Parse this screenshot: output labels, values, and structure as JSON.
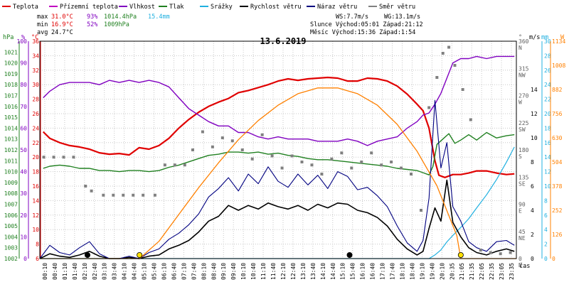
{
  "title": "13.6.2019",
  "legend": [
    {
      "label": "Teplota",
      "color": "#e00000"
    },
    {
      "label": "Přízemní teplota",
      "color": "#c000c0"
    },
    {
      "label": "Vlhkost",
      "color": "#8000c0"
    },
    {
      "label": "Tlak",
      "color": "#208020"
    },
    {
      "label": "Srážky",
      "color": "#20b0e0"
    },
    {
      "label": "Rychlost větru",
      "color": "#000000"
    },
    {
      "label": "Náraz větru",
      "color": "#000080"
    },
    {
      "label": "Směr větru",
      "color": "#808080"
    }
  ],
  "stats": {
    "max_label": "max",
    "max_temp": "31.0°C",
    "max_hum": "93%",
    "max_press": "1014.4hPa",
    "max_rain": "15.4mm",
    "min_label": "min",
    "min_temp": "16.9°C",
    "min_hum": "52%",
    "min_press": "1009hPa",
    "avg_label": "avg",
    "avg_temp": "24.7°C",
    "ws": "WS:7.7m/s",
    "wg": "WG:13.1m/s",
    "sun": "Slunce Východ:05:01  Západ:21:12",
    "moon": "Měsíc  Východ:15:36  Západ:1:54"
  },
  "axis_units": {
    "hpa": "hPa",
    "pct": "%",
    "degc": "°C",
    "deg": "°",
    "ms": "m/s",
    "mm": "mm",
    "sun": "W",
    "time": "čas"
  },
  "colors": {
    "temp": "#e00000",
    "hum": "#8000c0",
    "press": "#208020",
    "rain": "#20b0e0",
    "wind": "#000000",
    "gust": "#000080",
    "dir": "#808080",
    "sun": "#ff8000",
    "grid": "#c8c8c8"
  },
  "chart_data": {
    "type": "line",
    "x_unit": "hours",
    "x_range": [
      0,
      24
    ],
    "x_ticks": [
      "00:10",
      "00:40",
      "01:10",
      "01:40",
      "02:10",
      "02:40",
      "03:10",
      "03:40",
      "04:10",
      "04:40",
      "05:10",
      "05:40",
      "06:10",
      "06:40",
      "07:10",
      "07:40",
      "08:10",
      "08:40",
      "09:10",
      "09:40",
      "10:10",
      "10:40",
      "11:10",
      "11:40",
      "12:10",
      "12:40",
      "13:10",
      "13:40",
      "14:10",
      "14:40",
      "15:10",
      "15:40",
      "16:10",
      "16:40",
      "17:10",
      "17:40",
      "18:10",
      "18:40",
      "19:10",
      "19:40",
      "20:10",
      "20:35",
      "21:05",
      "21:35",
      "22:05",
      "22:35",
      "23:05",
      "23:35"
    ],
    "axes": {
      "hpa": {
        "ticks": [
          "1002",
          "1003",
          "1004",
          "1005",
          "1006",
          "1007",
          "1008",
          "1009",
          "1010",
          "1011",
          "1012",
          "1013",
          "1014",
          "1015",
          "1016",
          "1017",
          "1018",
          "1019",
          "1020",
          "1021"
        ],
        "range": [
          1002,
          1022
        ]
      },
      "pct": {
        "ticks": [
          "0",
          "10",
          "20",
          "30",
          "40",
          "50",
          "60",
          "70",
          "80",
          "90",
          "100"
        ],
        "range": [
          0,
          100
        ]
      },
      "degc": {
        "ticks": [
          "6",
          "8",
          "10",
          "12",
          "14",
          "16",
          "18",
          "20",
          "22",
          "24",
          "26",
          "28",
          "30",
          "32",
          "34",
          "36"
        ],
        "range": [
          6,
          36
        ]
      },
      "deg": {
        "ticks": [
          "0",
          "45",
          "90",
          "135",
          "180",
          "225",
          "270",
          "315",
          "360"
        ],
        "range": [
          0,
          360
        ]
      },
      "dir_labels": [
        "N",
        "NE",
        "E",
        "SE",
        "S",
        "SW",
        "W",
        "NW",
        "N"
      ],
      "ms": {
        "ticks": [
          "0",
          "2",
          "4",
          "6",
          "8",
          "10",
          "12",
          "14"
        ],
        "range": [
          0,
          18
        ]
      },
      "mm": {
        "ticks": [
          "0",
          "2",
          "4",
          "6",
          "8",
          "10",
          "12",
          "14",
          "16",
          "18",
          "20",
          "22",
          "24",
          "26",
          "28",
          "30"
        ],
        "range": [
          0,
          30
        ]
      },
      "sun": {
        "ticks": [
          "0",
          "126",
          "252",
          "378",
          "504",
          "630",
          "756",
          "882",
          "1008",
          "1134"
        ],
        "range": [
          0,
          1134
        ]
      }
    },
    "series": [
      {
        "name": "Teplota",
        "axis": "degc",
        "x": [
          0.17,
          0.5,
          1,
          1.5,
          2,
          2.5,
          3,
          3.5,
          4,
          4.5,
          5,
          5.5,
          6,
          6.5,
          7,
          7.5,
          8,
          8.5,
          9,
          9.5,
          10,
          10.5,
          11,
          11.5,
          12,
          12.5,
          13,
          13.5,
          14,
          14.5,
          15,
          15.5,
          16,
          16.5,
          17,
          17.5,
          18,
          18.5,
          19,
          19.3,
          19.6,
          19.9,
          20.1,
          20.4,
          20.8,
          21.2,
          21.6,
          22,
          22.5,
          23,
          23.5,
          23.9
        ],
        "y": [
          23.5,
          22.6,
          22,
          21.6,
          21.4,
          21.1,
          20.6,
          20.4,
          20.5,
          20.3,
          21.3,
          21.1,
          21.6,
          22.6,
          24,
          25.2,
          26.2,
          27,
          27.6,
          28.1,
          28.9,
          29.2,
          29.6,
          30,
          30.5,
          30.8,
          30.6,
          30.8,
          30.9,
          31,
          30.9,
          30.5,
          30.5,
          30.9,
          30.8,
          30.5,
          29.8,
          28.7,
          27.3,
          26.4,
          24,
          19.5,
          17.5,
          17.2,
          17.6,
          17.6,
          17.8,
          18.1,
          18.1,
          17.8,
          17.6,
          17.7
        ]
      },
      {
        "name": "Vlhkost",
        "axis": "pct",
        "x": [
          0.17,
          0.5,
          1,
          1.5,
          2,
          2.5,
          3,
          3.5,
          4,
          4.5,
          5,
          5.5,
          6,
          6.5,
          7,
          7.5,
          8,
          8.5,
          9,
          9.5,
          10,
          10.5,
          11,
          11.5,
          12,
          12.5,
          13,
          13.5,
          14,
          14.5,
          15,
          15.5,
          16,
          16.5,
          17,
          17.5,
          18,
          18.5,
          19,
          19.3,
          19.6,
          19.9,
          20.2,
          20.5,
          20.8,
          21.2,
          21.6,
          22,
          22.5,
          23,
          23.5,
          23.9
        ],
        "y": [
          74,
          77,
          80,
          81,
          81,
          81,
          80,
          82,
          81,
          82,
          81,
          82,
          81,
          79,
          74,
          69,
          66,
          63,
          61,
          61,
          58,
          58,
          56,
          55,
          56,
          55,
          55,
          55,
          54,
          54,
          54,
          55,
          54,
          52,
          54,
          55,
          56,
          60,
          63,
          66,
          67,
          71,
          76,
          83,
          90,
          92,
          92,
          93,
          92,
          93,
          93,
          93
        ]
      },
      {
        "name": "Tlak",
        "axis": "hpa",
        "x": [
          0.17,
          0.5,
          1,
          1.5,
          2,
          2.5,
          3,
          3.5,
          4,
          4.5,
          5,
          5.5,
          6,
          6.5,
          7,
          7.5,
          8,
          8.5,
          9,
          9.5,
          10,
          10.5,
          11,
          11.5,
          12,
          12.5,
          13,
          13.5,
          14,
          14.5,
          15,
          15.5,
          16,
          16.5,
          17,
          17.5,
          18,
          18.5,
          19,
          19.3,
          19.6,
          19.8,
          20,
          20.3,
          20.6,
          20.9,
          21.2,
          21.6,
          22,
          22.5,
          23,
          23.5,
          23.9
        ],
        "y": [
          1010.3,
          1010.5,
          1010.6,
          1010.5,
          1010.3,
          1010.3,
          1010.1,
          1010.1,
          1010.0,
          1010.1,
          1010.1,
          1010.0,
          1010.1,
          1010.4,
          1010.6,
          1010.9,
          1011.2,
          1011.5,
          1011.6,
          1011.8,
          1011.8,
          1011.7,
          1011.8,
          1011.6,
          1011.7,
          1011.5,
          1011.4,
          1011.2,
          1011.1,
          1011.1,
          1011.0,
          1010.9,
          1010.8,
          1010.7,
          1010.6,
          1010.5,
          1010.3,
          1010.2,
          1010.1,
          1009.9,
          1009.7,
          1010.5,
          1012.5,
          1013.0,
          1013.5,
          1012.6,
          1012.9,
          1013.4,
          1012.9,
          1013.6,
          1013.1,
          1013.3,
          1013.4
        ]
      },
      {
        "name": "Srážky",
        "axis": "mm",
        "x": [
          0,
          19.6,
          19.9,
          20.2,
          20.5,
          20.8,
          21.2,
          21.6,
          22,
          22.5,
          23,
          23.5,
          23.9
        ],
        "y": [
          0,
          0,
          0.5,
          1.2,
          2.3,
          3.2,
          4.3,
          5.5,
          7.0,
          8.8,
          10.9,
          13.3,
          15.4
        ]
      },
      {
        "name": "Rychlost větru",
        "axis": "ms",
        "x": [
          0,
          0.5,
          1,
          1.5,
          2,
          2.5,
          3,
          3.5,
          4,
          4.5,
          5,
          5.5,
          6,
          6.5,
          7,
          7.5,
          8,
          8.5,
          9,
          9.5,
          10,
          10.5,
          11,
          11.5,
          12,
          12.5,
          13,
          13.5,
          14,
          14.5,
          15,
          15.5,
          16,
          16.5,
          17,
          17.5,
          18,
          18.5,
          19,
          19.3,
          19.6,
          19.9,
          20.2,
          20.5,
          20.8,
          21.2,
          21.6,
          22,
          22.5,
          23,
          23.5,
          23.9
        ],
        "y": [
          0,
          0.4,
          0.2,
          0.1,
          0.3,
          0.6,
          0.2,
          0,
          0,
          0.1,
          0,
          0.2,
          0.3,
          0.8,
          1.1,
          1.5,
          2.2,
          3.1,
          3.5,
          4.4,
          4.0,
          4.4,
          4.1,
          4.6,
          4.3,
          4.1,
          4.4,
          4.0,
          4.5,
          4.2,
          4.6,
          4.5,
          4.0,
          3.8,
          3.4,
          2.7,
          1.6,
          0.8,
          0.3,
          0.6,
          2.5,
          4.2,
          3.1,
          6.5,
          3.0,
          1.8,
          0.9,
          0.5,
          0.3,
          0.6,
          0.8,
          0.6
        ]
      },
      {
        "name": "Náraz větru",
        "axis": "ms",
        "x": [
          0,
          0.5,
          1,
          1.5,
          2,
          2.5,
          3,
          3.5,
          4,
          4.5,
          5,
          5.5,
          6,
          6.5,
          7,
          7.5,
          8,
          8.5,
          9,
          9.5,
          10,
          10.5,
          11,
          11.5,
          12,
          12.5,
          13,
          13.5,
          14,
          14.5,
          15,
          15.5,
          16,
          16.5,
          17,
          17.5,
          18,
          18.5,
          19,
          19.3,
          19.6,
          19.9,
          20.2,
          20.5,
          20.8,
          21.2,
          21.6,
          22,
          22.5,
          23,
          23.5,
          23.9
        ],
        "y": [
          0,
          1.1,
          0.5,
          0.3,
          0.9,
          1.4,
          0.4,
          0,
          0,
          0.2,
          0,
          0.5,
          0.8,
          1.6,
          2.1,
          2.8,
          3.7,
          5.1,
          5.8,
          6.7,
          5.6,
          7.0,
          6.2,
          7.6,
          6.4,
          5.9,
          7.0,
          6.1,
          6.9,
          5.8,
          7.2,
          6.8,
          5.7,
          5.9,
          5.2,
          4.3,
          2.7,
          1.3,
          0.6,
          1.5,
          5.0,
          13.1,
          7.5,
          9.6,
          4.3,
          3.1,
          1.4,
          0.9,
          0.6,
          1.4,
          1.5,
          1.1
        ]
      },
      {
        "name": "Směr větru",
        "axis": "deg",
        "x": [
          0.2,
          0.7,
          1.2,
          1.7,
          2.3,
          2.6,
          3.2,
          3.7,
          4.2,
          4.7,
          5.2,
          5.8,
          6.3,
          6.8,
          7.3,
          7.7,
          8.2,
          8.7,
          9.2,
          9.7,
          10.2,
          10.7,
          11.2,
          11.7,
          12.2,
          12.7,
          13.2,
          13.7,
          14.2,
          14.7,
          15.2,
          15.7,
          16.2,
          16.7,
          17.2,
          17.7,
          18.2,
          18.7,
          19.2,
          19.6,
          20,
          20.3,
          20.6,
          20.9,
          21.3,
          21.7,
          22.2,
          22.7,
          23.2,
          23.7
        ],
        "y": [
          168,
          168,
          168,
          168,
          120,
          112,
          105,
          105,
          105,
          105,
          105,
          105,
          155,
          155,
          155,
          180,
          210,
          185,
          200,
          195,
          180,
          165,
          205,
          170,
          150,
          170,
          160,
          155,
          140,
          165,
          175,
          150,
          160,
          175,
          155,
          160,
          150,
          140,
          80,
          250,
          300,
          340,
          350,
          320,
          280,
          230,
          14,
          10,
          8,
          10
        ]
      },
      {
        "name": "Slunce",
        "axis": "sun",
        "x": [
          0,
          5.02,
          6,
          7,
          8,
          9,
          10,
          11,
          12,
          13,
          14,
          15,
          16,
          17,
          18,
          19,
          20,
          21,
          21.2,
          24
        ],
        "y": [
          0,
          0,
          90,
          230,
          370,
          500,
          620,
          720,
          800,
          860,
          890,
          890,
          860,
          800,
          700,
          560,
          380,
          120,
          0,
          0
        ]
      }
    ]
  }
}
